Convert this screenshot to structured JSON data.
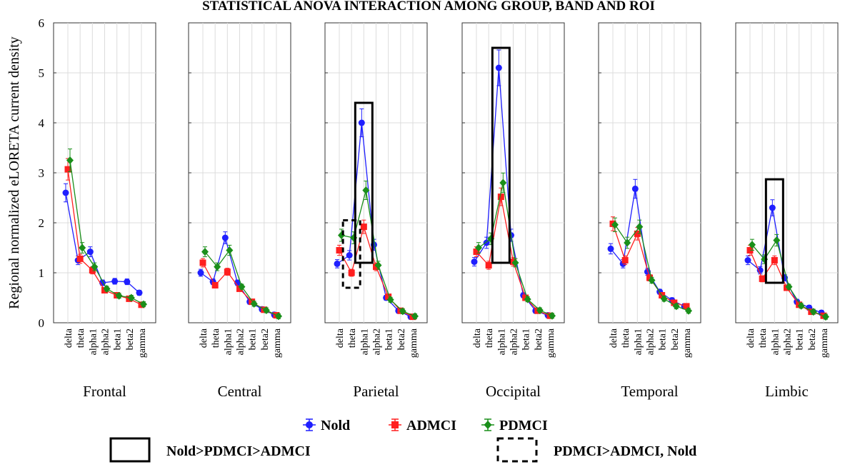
{
  "chart_data": {
    "type": "line",
    "title": "STATISTICAL ANOVA INTERACTION AMONG GROUP, BAND AND ROI",
    "ylabel": "Regional normalized eLORETA current density",
    "ylim": [
      0,
      6
    ],
    "yticks": [
      "0",
      "1",
      "2",
      "3",
      "4",
      "5",
      "6"
    ],
    "grid": true,
    "legend_position": "bottom-center",
    "categories": [
      "delta",
      "theta",
      "alpha1",
      "alpha2",
      "beta1",
      "beta2",
      "gamma"
    ],
    "colors": {
      "Nold": "#1f1fff",
      "ADMCI": "#ff1f1f",
      "PDMCI": "#1a8f1a"
    },
    "panels": [
      {
        "name": "Frontal",
        "series": [
          {
            "name": "Nold",
            "values": [
              2.6,
              1.25,
              1.42,
              0.8,
              0.83,
              0.82,
              0.6
            ]
          },
          {
            "name": "ADMCI",
            "values": [
              3.07,
              1.28,
              1.05,
              0.65,
              0.55,
              0.48,
              0.36
            ]
          },
          {
            "name": "PDMCI",
            "values": [
              3.25,
              1.5,
              1.12,
              0.68,
              0.54,
              0.5,
              0.37
            ]
          }
        ],
        "boxes": []
      },
      {
        "name": "Central",
        "series": [
          {
            "name": "Nold",
            "values": [
              1.0,
              0.82,
              1.7,
              0.8,
              0.42,
              0.27,
              0.16
            ]
          },
          {
            "name": "ADMCI",
            "values": [
              1.2,
              0.75,
              1.02,
              0.68,
              0.42,
              0.26,
              0.15
            ]
          },
          {
            "name": "PDMCI",
            "values": [
              1.42,
              1.12,
              1.45,
              0.72,
              0.38,
              0.25,
              0.13
            ]
          }
        ],
        "boxes": []
      },
      {
        "name": "Parietal",
        "series": [
          {
            "name": "Nold",
            "values": [
              1.18,
              1.35,
              4.0,
              1.56,
              0.5,
              0.24,
              0.12
            ]
          },
          {
            "name": "ADMCI",
            "values": [
              1.45,
              1.0,
              1.92,
              1.12,
              0.52,
              0.24,
              0.12
            ]
          },
          {
            "name": "PDMCI",
            "values": [
              1.75,
              1.7,
              2.65,
              1.15,
              0.46,
              0.23,
              0.13
            ]
          }
        ],
        "boxes": [
          {
            "style": "dashed",
            "category": "theta",
            "ymin": 0.7,
            "ymax": 2.05
          },
          {
            "style": "solid",
            "category": "alpha1",
            "ymin": 1.2,
            "ymax": 4.4
          }
        ]
      },
      {
        "name": "Occipital",
        "series": [
          {
            "name": "Nold",
            "values": [
              1.22,
              1.6,
              5.1,
              1.75,
              0.55,
              0.24,
              0.15
            ]
          },
          {
            "name": "ADMCI",
            "values": [
              1.42,
              1.15,
              2.52,
              1.22,
              0.5,
              0.24,
              0.14
            ]
          },
          {
            "name": "PDMCI",
            "values": [
              1.5,
              1.68,
              2.8,
              1.2,
              0.47,
              0.25,
              0.14
            ]
          }
        ],
        "boxes": [
          {
            "style": "solid",
            "category": "alpha1",
            "ymin": 1.2,
            "ymax": 5.5
          }
        ]
      },
      {
        "name": "Temporal",
        "series": [
          {
            "name": "Nold",
            "values": [
              1.48,
              1.18,
              2.68,
              1.02,
              0.62,
              0.45,
              0.33
            ]
          },
          {
            "name": "ADMCI",
            "values": [
              1.98,
              1.25,
              1.78,
              0.9,
              0.55,
              0.4,
              0.33
            ]
          },
          {
            "name": "PDMCI",
            "values": [
              1.96,
              1.6,
              1.92,
              0.85,
              0.48,
              0.33,
              0.24
            ]
          }
        ],
        "boxes": []
      },
      {
        "name": "Limbic",
        "series": [
          {
            "name": "Nold",
            "values": [
              1.25,
              1.05,
              2.3,
              0.9,
              0.42,
              0.3,
              0.2
            ]
          },
          {
            "name": "ADMCI",
            "values": [
              1.45,
              0.88,
              1.25,
              0.7,
              0.36,
              0.22,
              0.14
            ]
          },
          {
            "name": "PDMCI",
            "values": [
              1.56,
              1.27,
              1.65,
              0.72,
              0.34,
              0.22,
              0.12
            ]
          }
        ],
        "boxes": [
          {
            "style": "solid",
            "category": "alpha1",
            "ymin": 0.8,
            "ymax": 2.87
          }
        ]
      }
    ],
    "legend": [
      "Nold",
      "ADMCI",
      "PDMCI"
    ],
    "box_legend": [
      {
        "style": "solid",
        "label": "Nold>PDMCI>ADMCI"
      },
      {
        "style": "dashed",
        "label": "PDMCI>ADMCI, Nold"
      }
    ]
  }
}
